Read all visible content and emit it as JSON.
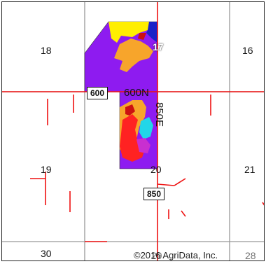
{
  "map": {
    "section_labels": [
      "18",
      "17",
      "16",
      "19",
      "20",
      "21",
      "30",
      "29",
      "28"
    ],
    "shields": [
      "600",
      "850"
    ],
    "road_names": [
      "600N",
      "850E"
    ],
    "copyright": "©2016 AgriData, Inc.",
    "colors": {
      "background": "#ffffff",
      "section_lines": "#999999",
      "roads": "#ee1111",
      "field_purple": "#8e1bf0",
      "field_orange": "#f7a52b",
      "field_yellow": "#ffee00",
      "field_blue": "#1a22c8",
      "field_red": "#ff2222",
      "field_dark_red": "#cc1010",
      "field_cyan": "#22d6e8",
      "field_magenta": "#c92fd0"
    }
  }
}
